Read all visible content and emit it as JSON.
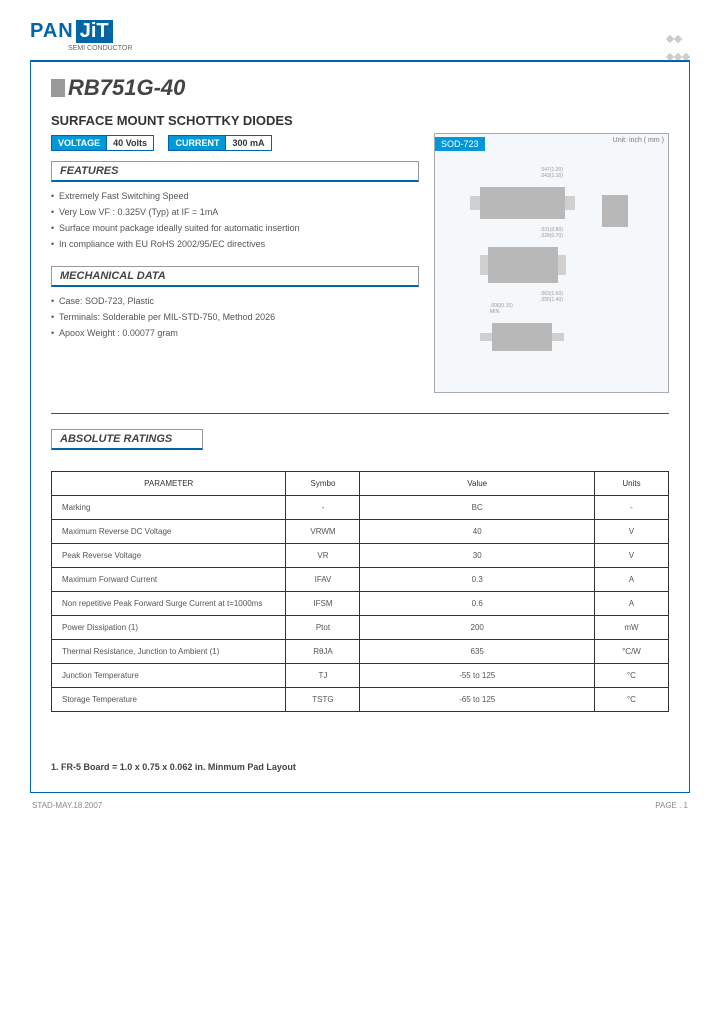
{
  "logo": {
    "pan": "PAN",
    "jit": "JiT",
    "sub": "SEMI CONDUCTOR"
  },
  "part_number": "RB751G-40",
  "subtitle": "SURFACE MOUNT SCHOTTKY DIODES",
  "badges": [
    {
      "label": "VOLTAGE",
      "value": "40 Volts"
    },
    {
      "label": "CURRENT",
      "value": "300 mA"
    }
  ],
  "package": {
    "name": "SOD-723",
    "unit": "Unit: inch ( mm )"
  },
  "features": {
    "title": "FEATURES",
    "items": [
      "Extremely Fast Switching Speed",
      "Very Low VF : 0.325V (Typ) at IF = 1mA",
      "Surface mount package ideally suited for automatic insertion",
      "In compliance with EU RoHS 2002/95/EC directives"
    ]
  },
  "mechanical": {
    "title": "MECHANICAL DATA",
    "items": [
      "Case: SOD-723, Plastic",
      "Terminals: Solderable per MIL-STD-750, Method 2026",
      "Apoox Weight : 0.00077 gram"
    ]
  },
  "ratings": {
    "title": "ABSOLUTE RATINGS",
    "headers": [
      "PARAMETER",
      "Symbo",
      "Value",
      "Units"
    ],
    "rows": [
      [
        "Marking",
        "-",
        "BC",
        "-"
      ],
      [
        "Maximum Reverse DC Voltage",
        "VRWM",
        "40",
        "V"
      ],
      [
        "Peak Reverse Voltage",
        "VR",
        "30",
        "V"
      ],
      [
        "Maximum Forward Current",
        "IFAV",
        "0.3",
        "A"
      ],
      [
        "Non repetitive Peak Forward Surge Current at t=1000ms",
        "IFSM",
        "0.6",
        "A"
      ],
      [
        "Power Dissipation (1)",
        "Ptot",
        "200",
        "mW"
      ],
      [
        "Thermal Resistance, Junction to Ambient (1)",
        "RθJA",
        "635",
        "°C/W"
      ],
      [
        "Junction Temperature",
        "TJ",
        "-55 to 125",
        "°C"
      ],
      [
        "Storage Temperature",
        "TSTG",
        "-65 to 125",
        "°C"
      ]
    ]
  },
  "note": "1. FR-5 Board = 1.0 x 0.75 x 0.062 in. Minmum Pad Layout",
  "footer": {
    "left": "STAD-MAY.18.2007",
    "right": "PAGE .  1"
  }
}
